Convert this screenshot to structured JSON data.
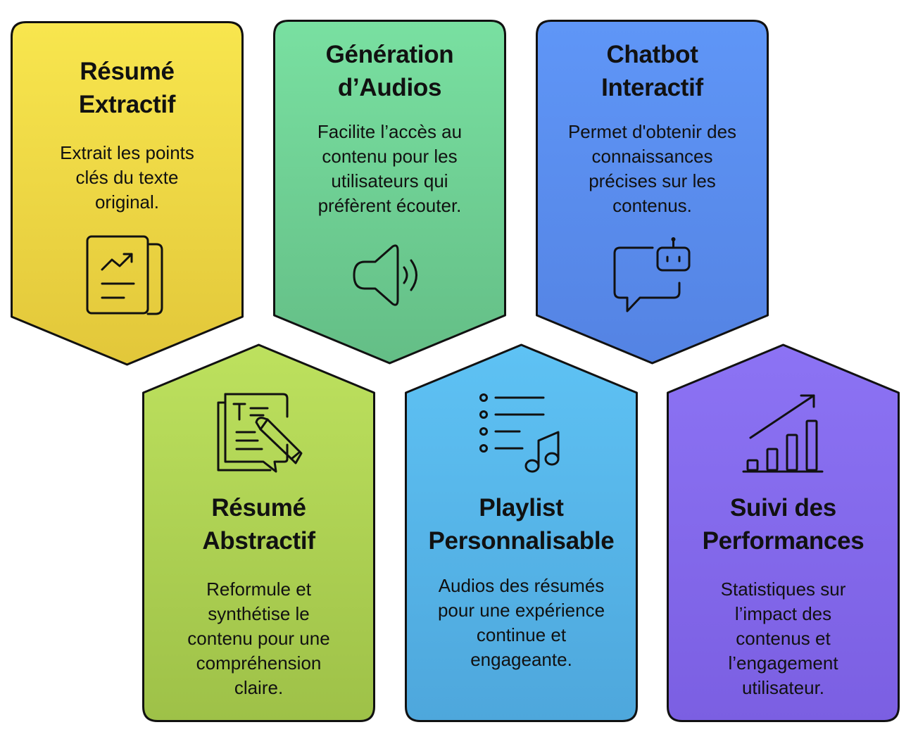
{
  "cards": [
    {
      "title": [
        "Résumé",
        "Extractif"
      ],
      "description": [
        "Extrait les points",
        "clés du texte",
        "original."
      ],
      "icon": "report-chart-icon",
      "color_top": "#f8e64e",
      "color_bottom": "#e2c73a"
    },
    {
      "title": [
        "Génération",
        "d’Audios"
      ],
      "description": [
        "Facilite l’accès au",
        "contenu pour les",
        "utilisateurs qui",
        "préfèrent écouter."
      ],
      "icon": "speaker-icon",
      "color_top": "#79e0a1",
      "color_bottom": "#64be86"
    },
    {
      "title": [
        "Chatbot",
        "Interactif"
      ],
      "description": [
        "Permet d'obtenir des",
        "connaissances",
        "précises sur les",
        "contenus."
      ],
      "icon": "chatbot-icon",
      "color_top": "#5f96f7",
      "color_bottom": "#5483e3"
    },
    {
      "title": [
        "Résumé",
        "Abstractif"
      ],
      "description": [
        "Reformule et",
        "synthétise le",
        "contenu pour une",
        "compréhension",
        "claire."
      ],
      "icon": "document-edit-icon",
      "color_top": "#bde15e",
      "color_bottom": "#9ec148"
    },
    {
      "title": [
        "Playlist",
        "Personnalisable"
      ],
      "description": [
        "Audios des résumés",
        "pour une expérience",
        "continue et",
        "engageante."
      ],
      "icon": "music-playlist-icon",
      "color_top": "#5ec2f4",
      "color_bottom": "#4ea7dc"
    },
    {
      "title": [
        "Suivi des",
        "Performances"
      ],
      "description": [
        "Statistiques sur",
        "l’impact des",
        "contenus et",
        "l’engagement",
        "utilisateur."
      ],
      "icon": "growth-bar-chart-icon",
      "color_top": "#8c73f4",
      "color_bottom": "#7b5fe2"
    }
  ]
}
